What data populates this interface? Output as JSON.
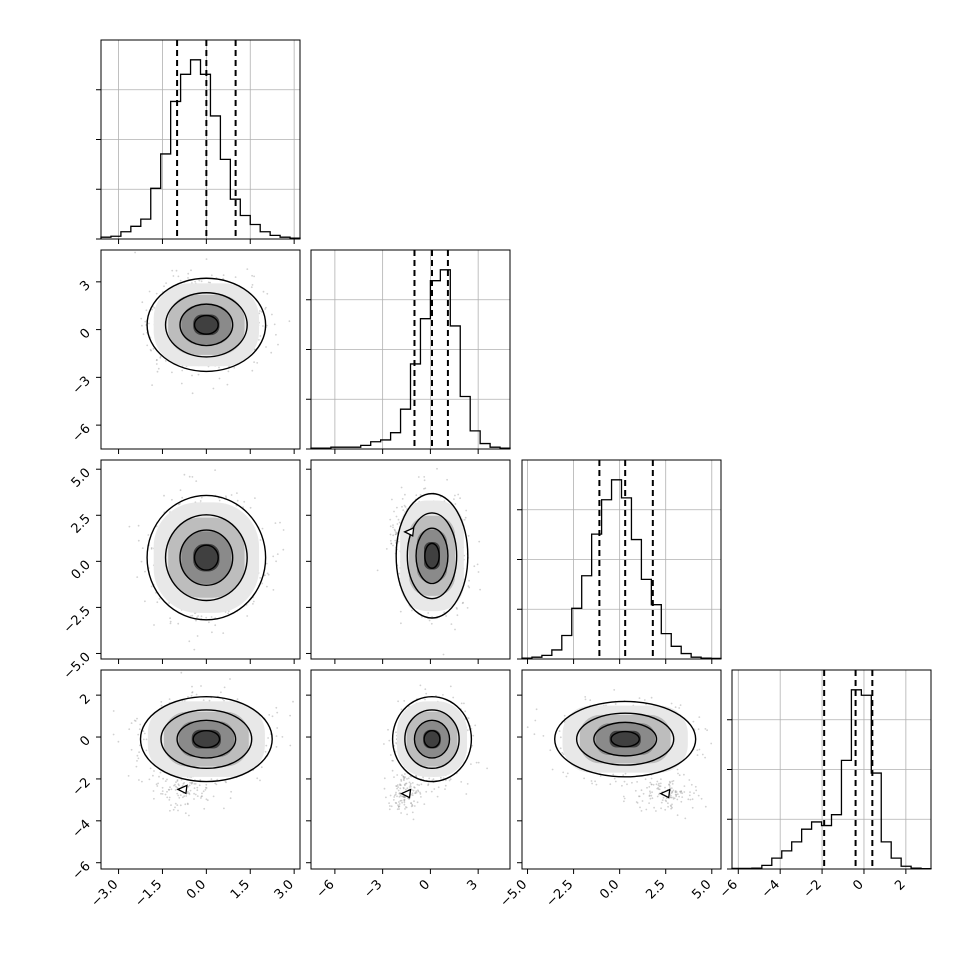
{
  "chart_data": {
    "type": "corner",
    "parameters": 4,
    "xlim": [
      [
        -3.6,
        3.2
      ],
      [
        -7.5,
        5.0
      ],
      [
        -5.3,
        5.5
      ],
      [
        -6.3,
        3.2
      ]
    ],
    "x_tick_values": [
      [
        -3.0,
        -1.5,
        0.0,
        1.5,
        3.0
      ],
      [
        -6,
        -3,
        0,
        3
      ],
      [
        -5.0,
        -2.5,
        0.0,
        2.5,
        5.0
      ],
      [
        -6,
        -4,
        -2,
        0,
        2
      ]
    ],
    "x_tick_labels": [
      [
        "−3.0",
        "−1.5",
        "0.0",
        "1.5",
        "3.0"
      ],
      [
        "−6",
        "−3",
        "0",
        "3"
      ],
      [
        "−5.0",
        "−2.5",
        "0.0",
        "2.5",
        "5.0"
      ],
      [
        "−6",
        "−4",
        "−2",
        "0",
        "2"
      ]
    ],
    "y_tick_values": [
      [],
      [
        3,
        0,
        -3,
        -6
      ],
      [
        5.0,
        2.5,
        0.0,
        -2.5,
        -5.0
      ],
      [
        2,
        0,
        -2,
        -4,
        -6
      ]
    ],
    "y_tick_labels": [
      [],
      [
        "3",
        "0",
        "−3",
        "−6"
      ],
      [
        "5.0",
        "2.5",
        "0.0",
        "−2.5",
        "−5.0"
      ],
      [
        "2",
        "0",
        "−2",
        "−4",
        "−6"
      ]
    ],
    "ylim": [
      [
        0,
        1
      ],
      [
        -7.5,
        5.0
      ],
      [
        -5.3,
        5.5
      ],
      [
        -6.3,
        3.2
      ]
    ],
    "grid": true,
    "quantiles": [
      [
        -1.0,
        0.0,
        1.0
      ],
      [
        -1.0,
        0.1,
        1.1
      ],
      [
        -1.1,
        0.3,
        1.8
      ],
      [
        -1.9,
        -0.4,
        0.4
      ]
    ],
    "histograms": [
      {
        "edges_start": -3.6,
        "bin_width": 0.34,
        "counts": [
          0.01,
          0.015,
          0.04,
          0.07,
          0.11,
          0.28,
          0.47,
          0.76,
          0.91,
          0.99,
          0.91,
          0.68,
          0.44,
          0.22,
          0.13,
          0.08,
          0.04,
          0.02,
          0.01,
          0.005
        ]
      },
      {
        "edges_start": -7.5,
        "bin_width": 0.625,
        "counts": [
          0.005,
          0.005,
          0.01,
          0.01,
          0.01,
          0.02,
          0.04,
          0.05,
          0.09,
          0.22,
          0.47,
          0.72,
          0.93,
          0.99,
          0.68,
          0.29,
          0.1,
          0.03,
          0.01,
          0.005
        ]
      },
      {
        "edges_start": -5.3,
        "bin_width": 0.54,
        "counts": [
          0.005,
          0.01,
          0.02,
          0.05,
          0.13,
          0.28,
          0.46,
          0.69,
          0.88,
          0.99,
          0.89,
          0.66,
          0.44,
          0.3,
          0.14,
          0.07,
          0.03,
          0.01,
          0.005,
          0.003
        ]
      },
      {
        "edges_start": -6.3,
        "bin_width": 0.475,
        "counts": [
          0.003,
          0.003,
          0.005,
          0.02,
          0.06,
          0.1,
          0.15,
          0.22,
          0.26,
          0.24,
          0.3,
          0.6,
          0.99,
          0.96,
          0.53,
          0.15,
          0.06,
          0.015,
          0.005,
          0.002
        ]
      }
    ],
    "pairs": [
      {
        "row": 1,
        "col": 0,
        "center": [
          0.0,
          0.3
        ],
        "sigma": [
          0.9,
          1.3
        ],
        "tail": null
      },
      {
        "row": 2,
        "col": 0,
        "center": [
          0.0,
          0.2
        ],
        "sigma": [
          0.9,
          1.5
        ],
        "tail": null
      },
      {
        "row": 2,
        "col": 1,
        "center": [
          0.1,
          0.3
        ],
        "sigma": [
          1.0,
          1.5
        ],
        "tail": [
          -1.3,
          1.6
        ]
      },
      {
        "row": 3,
        "col": 0,
        "center": [
          0.0,
          -0.1
        ],
        "sigma": [
          1.0,
          0.9
        ],
        "tail": [
          -0.8,
          -2.5
        ]
      },
      {
        "row": 3,
        "col": 1,
        "center": [
          0.1,
          -0.1
        ],
        "sigma": [
          1.1,
          0.9
        ],
        "tail": [
          -1.5,
          -2.7
        ]
      },
      {
        "row": 3,
        "col": 2,
        "center": [
          0.3,
          -0.1
        ],
        "sigma": [
          1.7,
          0.8
        ],
        "tail": [
          2.5,
          -2.7
        ]
      }
    ]
  }
}
